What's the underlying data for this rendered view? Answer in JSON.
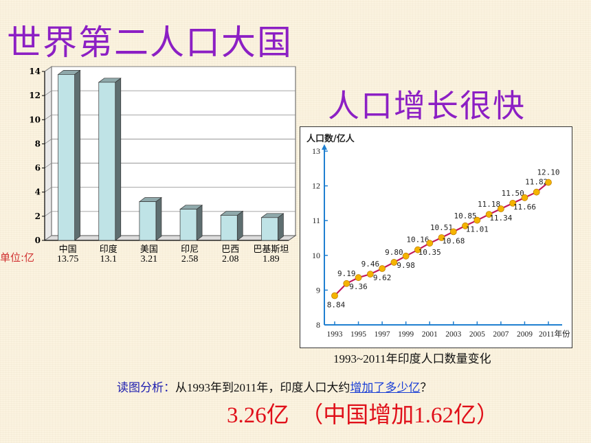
{
  "slide": {
    "title_left": "世界第二人口大国",
    "title_right": "人口增长很快",
    "unit_label": "单位:亿",
    "line_caption": "1993~2011年印度人口数量变化",
    "question_prefix": "读图分析：",
    "question_text": "从1993年到2011年，印度人口大约",
    "question_link": "增加了多少亿",
    "question_suffix": "？",
    "answer": "3.26亿　（中国增加1.62亿）"
  },
  "chart_data": [
    {
      "type": "bar",
      "categories": [
        "中国",
        "印度",
        "美国",
        "印尼",
        "巴西",
        "巴基斯坦"
      ],
      "values": [
        13.75,
        13.1,
        3.21,
        2.58,
        2.08,
        1.89
      ],
      "value_labels": [
        "13.75",
        "13.1",
        "3.21",
        "2.58",
        "2.08",
        "1.89"
      ],
      "ylim": [
        0,
        14
      ],
      "yticks": [
        0,
        2,
        4,
        6,
        8,
        10,
        12,
        14
      ],
      "grid": true,
      "bar_color": "#bfe3e6",
      "bar_side_color": "#5e6e70",
      "unit": "单位:亿"
    },
    {
      "type": "line",
      "x": [
        1993,
        1994,
        1995,
        1996,
        1997,
        1998,
        1999,
        2000,
        2001,
        2002,
        2003,
        2004,
        2005,
        2006,
        2007,
        2008,
        2009,
        2010,
        2011
      ],
      "y": [
        8.84,
        9.19,
        9.36,
        9.46,
        9.62,
        9.8,
        9.98,
        10.16,
        10.35,
        10.51,
        10.68,
        10.85,
        11.01,
        11.18,
        11.34,
        11.5,
        11.66,
        11.82,
        12.1
      ],
      "point_labels": [
        "8.84",
        "9.19",
        "9.36",
        "9.46",
        "9.62",
        "9.80",
        "9.98",
        "10.16",
        "10.35",
        "10.51",
        "10.68",
        "10.85",
        "11.01",
        "11.18",
        "11.34",
        "11.50",
        "11.66",
        "11.82",
        "12.10"
      ],
      "xticks": [
        1993,
        1995,
        1997,
        1999,
        2001,
        2003,
        2005,
        2007,
        2009,
        2011
      ],
      "xtick_labels": [
        "1993",
        "1995",
        "1997",
        "1999",
        "2001",
        "2003",
        "2005",
        "2007",
        "2009",
        "2011年份"
      ],
      "ylabel": "人口数/亿人",
      "ylim": [
        8,
        13
      ],
      "yticks": [
        8,
        9,
        10,
        11,
        12,
        13
      ],
      "grid": false,
      "line_color": "#c2185b",
      "marker_color": "#f5b400",
      "title": "1993~2011年印度人口数量变化"
    }
  ]
}
